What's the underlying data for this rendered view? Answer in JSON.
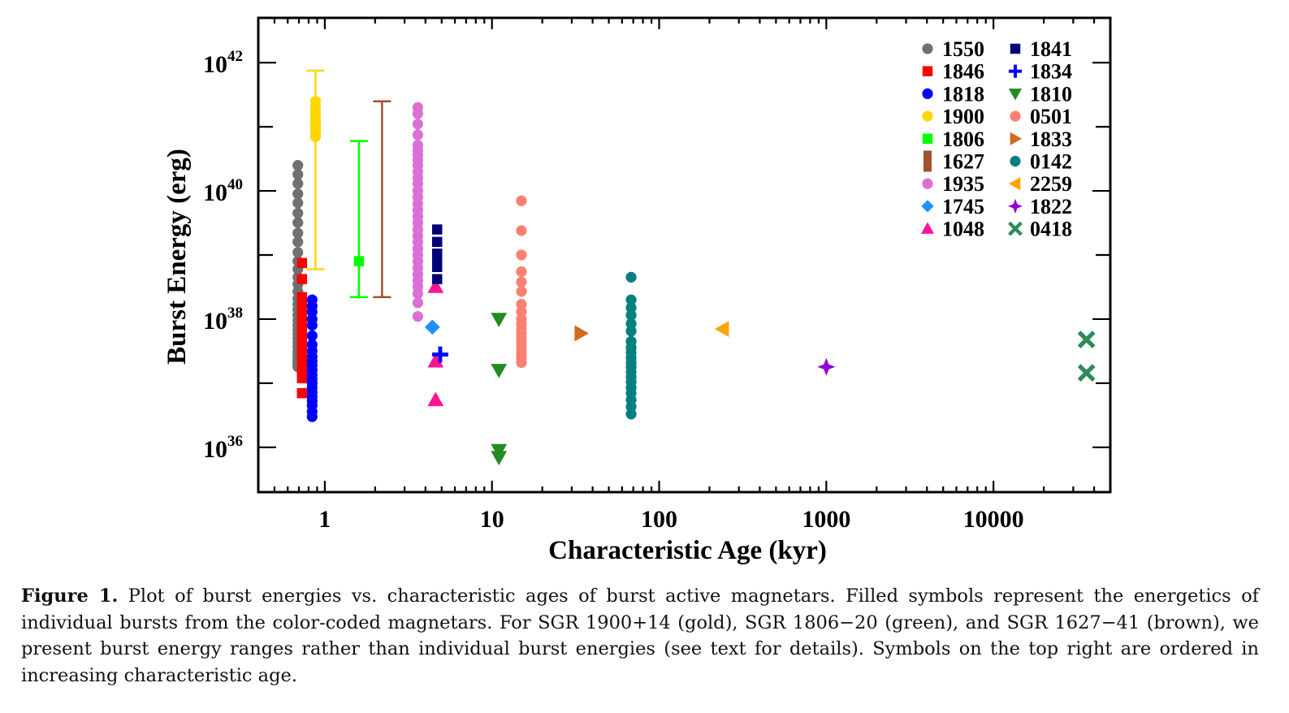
{
  "chart_data": {
    "type": "scatter",
    "xscale": "log",
    "yscale": "log",
    "xlim": [
      0.4,
      50000
    ],
    "ylim": [
      2e+35,
      5e+42
    ],
    "xlabel": "Characteristic Age (kyr)",
    "ylabel": "Burst Energy (erg)",
    "x_ticks": [
      "1",
      "10",
      "100",
      "1000",
      "10000"
    ],
    "y_ticks": [
      {
        "base": "10",
        "exp": "36"
      },
      {
        "base": "10",
        "exp": "38"
      },
      {
        "base": "10",
        "exp": "40"
      },
      {
        "base": "10",
        "exp": "42"
      }
    ],
    "legend_position": "top-right",
    "series": [
      {
        "name": "1550",
        "color": "#707070",
        "marker": "circle",
        "x": [
          0.69,
          0.69,
          0.69,
          0.69,
          0.69,
          0.69,
          0.69,
          0.69,
          0.69,
          0.69,
          0.69,
          0.69,
          0.69,
          0.69,
          0.69,
          0.69,
          0.69,
          0.69,
          0.69,
          0.69,
          0.69,
          0.69,
          0.69,
          0.69,
          0.69,
          0.69,
          0.69,
          0.69,
          0.69,
          0.69,
          0.69,
          0.69,
          0.69
        ],
        "y": [
          2.5e+40,
          1.8e+40,
          1.3e+40,
          9e+39,
          6.5e+39,
          4.5e+39,
          3.2e+39,
          2.2e+39,
          1.6e+39,
          1.1e+39,
          8e+38,
          6e+38,
          4.5e+38,
          3.5e+38,
          2.7e+38,
          2.1e+38,
          1.7e+38,
          1.4e+38,
          1.15e+38,
          9.5e+37,
          8e+37,
          6.8e+37,
          5.8e+37,
          5e+37,
          4.3e+37,
          3.7e+37,
          3.2e+37,
          2.8e+37,
          2.5e+37,
          2.2e+37,
          2e+37,
          1.9e+37,
          1.8e+37
        ]
      },
      {
        "name": "1846",
        "color": "#ff0000",
        "marker": "square",
        "x": [
          0.73,
          0.73,
          0.73,
          0.73,
          0.73,
          0.73,
          0.73,
          0.73,
          0.73,
          0.73,
          0.73,
          0.73,
          0.73,
          0.73,
          0.73,
          0.73,
          0.73,
          0.73,
          0.73,
          0.73
        ],
        "y": [
          7.5e+38,
          4.2e+38,
          2.2e+38,
          1.8e+38,
          1.5e+38,
          1.25e+38,
          1.05e+38,
          9e+37,
          7.6e+37,
          6.4e+37,
          5.4e+37,
          4.6e+37,
          3.9e+37,
          3.3e+37,
          2.8e+37,
          2.4e+37,
          2e+37,
          1.6e+37,
          1.2e+37,
          7e+36
        ]
      },
      {
        "name": "1818",
        "color": "#0000ff",
        "marker": "circle",
        "x": [
          0.84,
          0.84,
          0.84,
          0.84,
          0.84,
          0.84,
          0.84,
          0.84,
          0.84,
          0.84,
          0.84,
          0.84,
          0.84,
          0.84,
          0.84,
          0.84,
          0.84,
          0.84,
          0.84,
          0.84,
          0.84,
          0.84
        ],
        "y": [
          2e+38,
          1.6e+38,
          1.3e+38,
          1e+38,
          8e+37,
          5.5e+37,
          4e+37,
          3.2e+37,
          2.6e+37,
          2.2e+37,
          1.9e+37,
          1.6e+37,
          1.35e+37,
          1.15e+37,
          1e+37,
          8.5e+36,
          7.2e+36,
          6.2e+36,
          5.3e+36,
          4.5e+36,
          3.6e+36,
          3e+36
        ]
      },
      {
        "name": "1900",
        "color": "#ffd700",
        "marker": "circle",
        "errorbar": {
          "x": 0.88,
          "ymin": 6e+38,
          "ymax": 7.5e+41
        },
        "x": [
          0.88,
          0.88,
          0.88,
          0.88,
          0.88,
          0.88,
          0.88,
          0.88,
          0.88,
          0.88
        ],
        "y": [
          2.5e+41,
          2.1e+41,
          1.8e+41,
          1.5e+41,
          1.3e+41,
          1.15e+41,
          1e+41,
          9e+40,
          8e+40,
          7e+40
        ]
      },
      {
        "name": "1806",
        "color": "#00ff00",
        "marker": "square",
        "errorbar": {
          "x": 1.6,
          "ymin": 2.2e+38,
          "ymax": 6e+40
        },
        "x": [
          1.6
        ],
        "y": [
          8e+38
        ]
      },
      {
        "name": "1627",
        "color": "#a0522d",
        "marker": "square",
        "errorbar": {
          "x": 2.2,
          "ymin": 2.2e+38,
          "ymax": 2.5e+41
        },
        "x": [],
        "y": []
      },
      {
        "name": "1935",
        "color": "#da70d6",
        "marker": "circle",
        "x": [
          3.6,
          3.6,
          3.6,
          3.6,
          3.6,
          3.6,
          3.6,
          3.6,
          3.6,
          3.6,
          3.6,
          3.6,
          3.6,
          3.6,
          3.6,
          3.6,
          3.6,
          3.6,
          3.6,
          3.6,
          3.6,
          3.6,
          3.6,
          3.6,
          3.6,
          3.6,
          3.6,
          3.6,
          3.6,
          3.6,
          3.6
        ],
        "y": [
          2e+41,
          1.6e+41,
          1.1e+41,
          7.5e+40,
          5.2e+40,
          4.3e+40,
          3.6e+40,
          3e+40,
          2.5e+40,
          2e+40,
          1.6e+40,
          1.3e+40,
          1e+40,
          8e+39,
          6.3e+39,
          5e+39,
          4e+39,
          3.2e+39,
          2.5e+39,
          2e+39,
          1.6e+39,
          1.25e+39,
          1e+39,
          8e+38,
          6.3e+38,
          5e+38,
          4e+38,
          3.2e+38,
          2.5e+38,
          1.8e+38,
          1.1e+38
        ]
      },
      {
        "name": "1745",
        "color": "#1e90ff",
        "marker": "diamond",
        "x": [
          4.4
        ],
        "y": [
          7.5e+37
        ]
      },
      {
        "name": "1048",
        "color": "#ff1493",
        "marker": "triangle-up",
        "x": [
          4.6,
          4.6,
          4.6
        ],
        "y": [
          3.2e+38,
          2.2e+37,
          5.5e+36
        ]
      },
      {
        "name": "1841",
        "color": "#00007b",
        "marker": "square",
        "x": [
          4.7,
          4.7,
          4.7,
          4.7,
          4.7,
          4.7
        ],
        "y": [
          2.5e+39,
          1.6e+39,
          1.05e+39,
          8e+38,
          6.5e+38,
          4.2e+38
        ]
      },
      {
        "name": "1834",
        "color": "#0000ff",
        "marker": "plus",
        "x": [
          4.9
        ],
        "y": [
          2.8e+37
        ]
      },
      {
        "name": "1810",
        "color": "#228b22",
        "marker": "triangle-down",
        "x": [
          11,
          11,
          11,
          11
        ],
        "y": [
          1e+38,
          1.6e+37,
          9e+35,
          7e+35
        ]
      },
      {
        "name": "0501",
        "color": "#fa8072",
        "marker": "circle",
        "x": [
          15,
          15,
          15,
          15,
          15,
          15,
          15,
          15,
          15,
          15,
          15,
          15,
          15,
          15,
          15,
          15,
          15,
          15
        ],
        "y": [
          7e+39,
          2.4e+39,
          1e+39,
          5.5e+38,
          3.8e+38,
          2.7e+38,
          1.7e+38,
          1.3e+38,
          1e+38,
          8.5e+37,
          7e+37,
          6e+37,
          5e+37,
          4.2e+37,
          3.5e+37,
          3e+37,
          2.5e+37,
          2.1e+37
        ]
      },
      {
        "name": "1833",
        "color": "#d2691e",
        "marker": "triangle-right",
        "x": [
          34
        ],
        "y": [
          6e+37
        ]
      },
      {
        "name": "0142",
        "color": "#008080",
        "marker": "circle",
        "x": [
          68,
          68,
          68,
          68,
          68,
          68,
          68,
          68,
          68,
          68,
          68,
          68,
          68,
          68,
          68,
          68,
          68,
          68,
          68,
          68
        ],
        "y": [
          4.5e+38,
          2e+38,
          1.5e+38,
          1.15e+38,
          8.5e+37,
          6.5e+37,
          4.5e+37,
          3.6e+37,
          3e+37,
          2.5e+37,
          2.1e+37,
          1.8e+37,
          1.5e+37,
          1.25e+37,
          1.05e+37,
          8.5e+36,
          7e+36,
          5.5e+36,
          4.3e+36,
          3.3e+36
        ]
      },
      {
        "name": "2259",
        "color": "#ffa500",
        "marker": "triangle-left",
        "x": [
          240
        ],
        "y": [
          7e+37
        ]
      },
      {
        "name": "1822",
        "color": "#9400d3",
        "marker": "star4",
        "x": [
          1000
        ],
        "y": [
          1.8e+37
        ]
      },
      {
        "name": "0418",
        "color": "#2e8b57",
        "marker": "x",
        "x": [
          36000,
          36000
        ],
        "y": [
          4.8e+37,
          1.45e+37
        ]
      }
    ]
  },
  "caption": {
    "label": "Figure 1.",
    "text": " Plot of burst energies vs. characteristic ages of burst active magnetars. Filled symbols represent the energetics of individual bursts from the color-coded magnetars. For SGR 1900+14 (gold), SGR 1806−20 (green), and SGR 1627−41 (brown), we present burst energy ranges rather than individual burst energies (see text for details). Symbols on the top right are ordered in increasing characteristic age."
  }
}
